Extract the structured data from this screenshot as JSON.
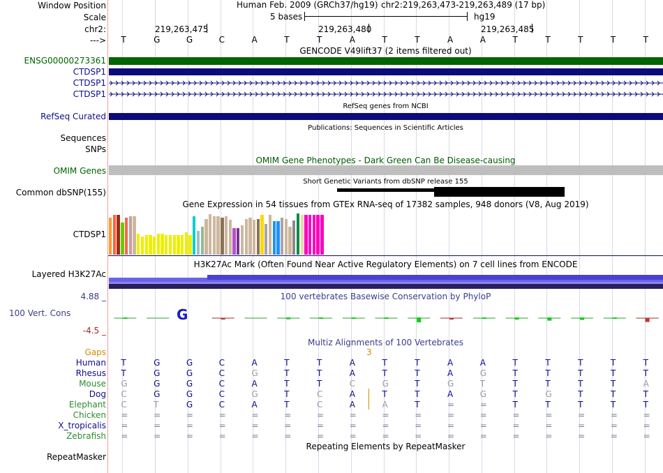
{
  "header": {
    "window_position_label": "Window Position",
    "scale_label": "Scale",
    "chrom_label": "chr2:",
    "strand_label": "--->",
    "assembly": "Human Feb. 2009 (GRCh37/hg19)",
    "position": "chr2:219,263,473-219,263,489 (17 bp)",
    "scale_text": "5 bases",
    "db": "hg19",
    "ticks": [
      "219,263,475",
      "219,263,480",
      "219,263,485"
    ]
  },
  "bases": [
    "T",
    "G",
    "G",
    "C",
    "A",
    "T",
    "T",
    "A",
    "T",
    "T",
    "A",
    "A",
    "T",
    "T",
    "T",
    "T",
    "T"
  ],
  "colors": {
    "label_blue": "#0e0e8c",
    "ensembl_green": "#006400",
    "gene_navy": "#0c0c78",
    "omim_gray": "#bebebe",
    "omim_title_green": "#005a00",
    "phylop_blue": "#3c3c8c",
    "phylop_neg": "#a02828",
    "gaps_orange": "#d28c00",
    "guide_line": "#d9d9e8",
    "left_border": "#e8a0a0"
  },
  "tracks": {
    "gencode": {
      "title": "GENCODE V49lift37 (2 items filtered out)",
      "rows": [
        "ENSG00000273361",
        "CTDSP1",
        "CTDSP1",
        "CTDSP1"
      ]
    },
    "refseq": {
      "title": "RefSeq genes from NCBI",
      "label": "RefSeq Curated"
    },
    "publications": {
      "title": "Publications: Sequences in Scientific Articles",
      "label": "Sequences"
    },
    "snps": {
      "label": "SNPs"
    },
    "omim": {
      "title": "OMIM Gene Phenotypes - Dark Green Can Be Disease-causing",
      "label": "OMIM Genes"
    },
    "dbsnp": {
      "title": "Short Genetic Variants from dbSNP release 155",
      "label": "Common dbSNP(155)"
    },
    "gtex": {
      "title": "Gene Expression in 54 tissues from GTEx RNA-seq of 17382 samples, 948 donors (V8, Aug 2019)",
      "label": "CTDSP1",
      "bar_colors": [
        "#FF9A30",
        "#FF6040",
        "#9B2F13",
        "#66CD00",
        "#EE6A50",
        "#CD9B9B",
        "#CDB79E",
        "#EEEE00",
        "#EEEE00",
        "#EEEE00",
        "#EEEE00",
        "#EEEE00",
        "#EEEE00",
        "#EEEE00",
        "#EEEE00",
        "#EEEE00",
        "#EEEE00",
        "#EEEE00",
        "#EEEE00",
        "#EEEE00",
        "#EEEE00",
        "#00CED1",
        "#9AC0CD",
        "#8FBC8F",
        "#CDB79E",
        "#CDB79E",
        "#CDB79E",
        "#CDB79E",
        "#8B7355",
        "#CDB79E",
        "#CDB79E",
        "#B452CD",
        "#7A378B",
        "#CDB79E",
        "#CDB79E",
        "#CDB79E",
        "#CDB79E",
        "#8B7355",
        "#FFD700",
        "#A6A6A6",
        "#CDB79E",
        "#1E90FF",
        "#1E90FF",
        "#A6A6A6",
        "#CDB79E",
        "#CDB79E",
        "#8B8989",
        "#008B45",
        "#EED8AE",
        "#FF00BB",
        "#FF00BB",
        "#FF00BB",
        "#FF00BB",
        "#FF00BB"
      ],
      "bar_levels": [
        0.81,
        0.86,
        0.86,
        0.69,
        0.81,
        0.84,
        0.84,
        0.46,
        0.4,
        0.43,
        0.43,
        0.4,
        0.46,
        0.46,
        0.43,
        0.43,
        0.43,
        0.43,
        0.43,
        0.49,
        0.43,
        0.84,
        0.52,
        0.61,
        0.78,
        0.88,
        0.84,
        0.84,
        0.81,
        0.84,
        0.76,
        0.58,
        0.58,
        0.63,
        0.78,
        0.81,
        0.75,
        0.78,
        0.86,
        0.66,
        0.86,
        0.72,
        0.72,
        0.81,
        0.78,
        0.61,
        0.74,
        0.89,
        0.86,
        0.86,
        0.86,
        0.86,
        0.86,
        0.86
      ]
    },
    "h3k27ac": {
      "title": "H3K27Ac Mark (Often Found Near Active Regulatory Elements) on 7 cell lines from ENCODE",
      "label": "Layered H3K27Ac"
    },
    "phylop": {
      "title": "100 vertebrates Basewise Conservation by PhyloP",
      "label": "100 Vert. Cons",
      "max_label": "4.88 _",
      "min_label": "-4.5 _"
    },
    "multiz": {
      "title": "Multiz Alignments of 100 Vertebrates",
      "gaps_label": "Gaps",
      "gap_value": "3",
      "species": [
        {
          "name": "Human",
          "seq": [
            "T",
            "G",
            "G",
            "C",
            "A",
            "T",
            "T",
            "A",
            "T",
            "T",
            "A",
            "A",
            "T",
            "T",
            "T",
            "T",
            "T"
          ]
        },
        {
          "name": "Rhesus",
          "seq": [
            "T",
            "G",
            "G",
            "C",
            "G",
            "T",
            "T",
            "A",
            "T",
            "T",
            "A",
            "G",
            "T",
            "T",
            "T",
            "T",
            "T"
          ]
        },
        {
          "name": "Mouse",
          "seq": [
            "G",
            "G",
            "G",
            "C",
            "A",
            "T",
            "T",
            "C",
            "G",
            "T",
            "G",
            "T",
            "T",
            "T",
            "T",
            "T",
            "A"
          ]
        },
        {
          "name": "Dog",
          "seq": [
            "C",
            "G",
            "G",
            "C",
            "G",
            "T",
            "C",
            "A",
            "T",
            "T",
            "A",
            "G",
            "T",
            "G",
            "T",
            "T",
            "T"
          ]
        },
        {
          "name": "Elephant",
          "seq": [
            "C",
            "T",
            "G",
            "C",
            "A",
            "T",
            "C",
            "A",
            "A",
            "T",
            "=",
            "=",
            "T",
            "T",
            "T",
            "T",
            "T"
          ]
        },
        {
          "name": "Chicken",
          "seq": [
            "=",
            "=",
            "=",
            "=",
            "=",
            "=",
            "=",
            "=",
            "=",
            "=",
            "=",
            "=",
            "=",
            "=",
            "=",
            "=",
            "="
          ]
        },
        {
          "name": "X_tropicalis",
          "seq": [
            "=",
            "=",
            "=",
            "=",
            "=",
            "=",
            "=",
            "=",
            "=",
            "=",
            "=",
            "=",
            "=",
            "=",
            "=",
            "=",
            "="
          ]
        },
        {
          "name": "Zebrafish",
          "seq": [
            "=",
            "=",
            "=",
            "=",
            "=",
            "=",
            "=",
            "=",
            "=",
            "=",
            "=",
            "=",
            "=",
            "=",
            "=",
            "=",
            "="
          ]
        }
      ]
    },
    "repeatmasker": {
      "title": "Repeating Elements by RepeatMasker",
      "label": "RepeatMasker"
    }
  }
}
